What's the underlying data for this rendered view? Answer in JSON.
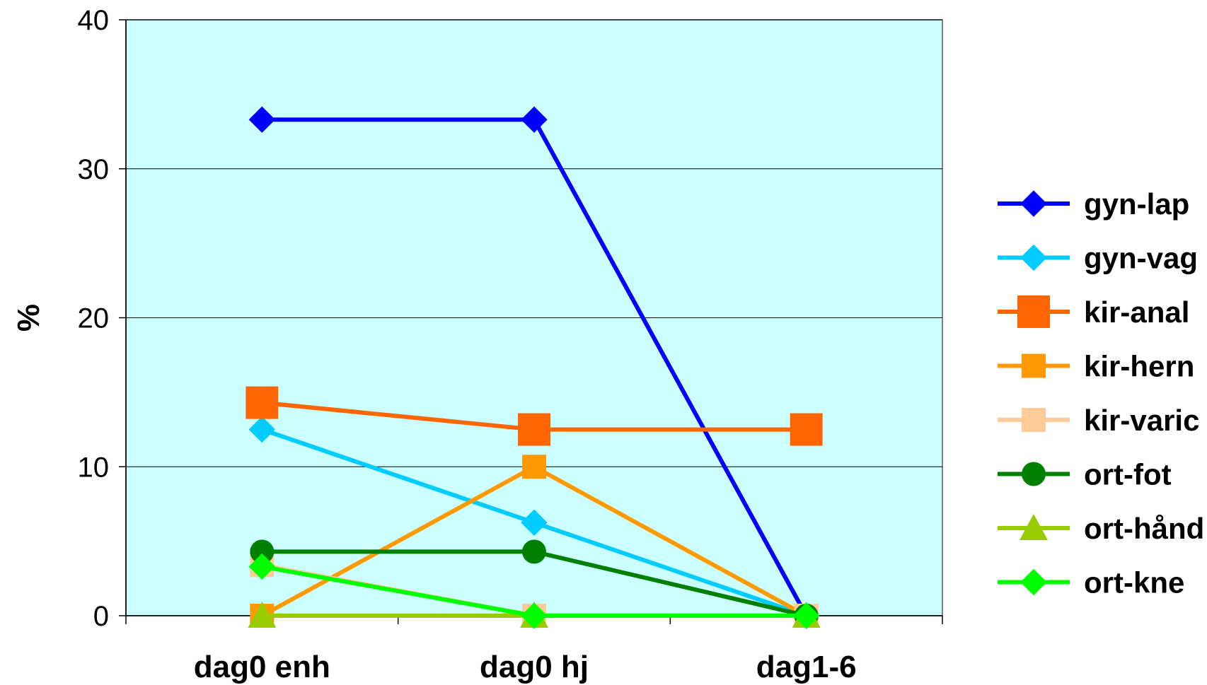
{
  "chart_data": {
    "type": "line",
    "title": "",
    "xlabel": "",
    "ylabel": "%",
    "categories": [
      "dag0 enh",
      "dag0 hj",
      "dag1-6"
    ],
    "ylim": [
      0,
      40
    ],
    "yticks": [
      0,
      10,
      20,
      30,
      40
    ],
    "grid": true,
    "plot_background": "#ccffff",
    "legend_position": "right",
    "series": [
      {
        "name": "gyn-lap",
        "values": [
          33.3,
          33.3,
          0
        ],
        "color": "#0000ff",
        "marker": "diamond",
        "marker_size": "medium"
      },
      {
        "name": "gyn-vag",
        "values": [
          12.5,
          6.25,
          0
        ],
        "color": "#00ccff",
        "marker": "diamond",
        "marker_size": "medium"
      },
      {
        "name": "kir-anal",
        "values": [
          14.3,
          12.5,
          12.5
        ],
        "color": "#ff6600",
        "marker": "square",
        "marker_size": "large"
      },
      {
        "name": "kir-hern",
        "values": [
          0,
          10,
          0
        ],
        "color": "#ff9900",
        "marker": "square",
        "marker_size": "medium"
      },
      {
        "name": "kir-varic",
        "values": [
          3.4,
          0,
          0
        ],
        "color": "#ffcc99",
        "marker": "square",
        "marker_size": "medium"
      },
      {
        "name": "ort-fot",
        "values": [
          4.3,
          4.3,
          0
        ],
        "color": "#008000",
        "marker": "circle",
        "marker_size": "medium"
      },
      {
        "name": "ort-hånd",
        "values": [
          0,
          0,
          0
        ],
        "color": "#99cc00",
        "marker": "triangle",
        "marker_size": "medium"
      },
      {
        "name": "ort-kne",
        "values": [
          3.3,
          0,
          0
        ],
        "color": "#00ff00",
        "marker": "diamond",
        "marker_size": "medium"
      }
    ]
  }
}
